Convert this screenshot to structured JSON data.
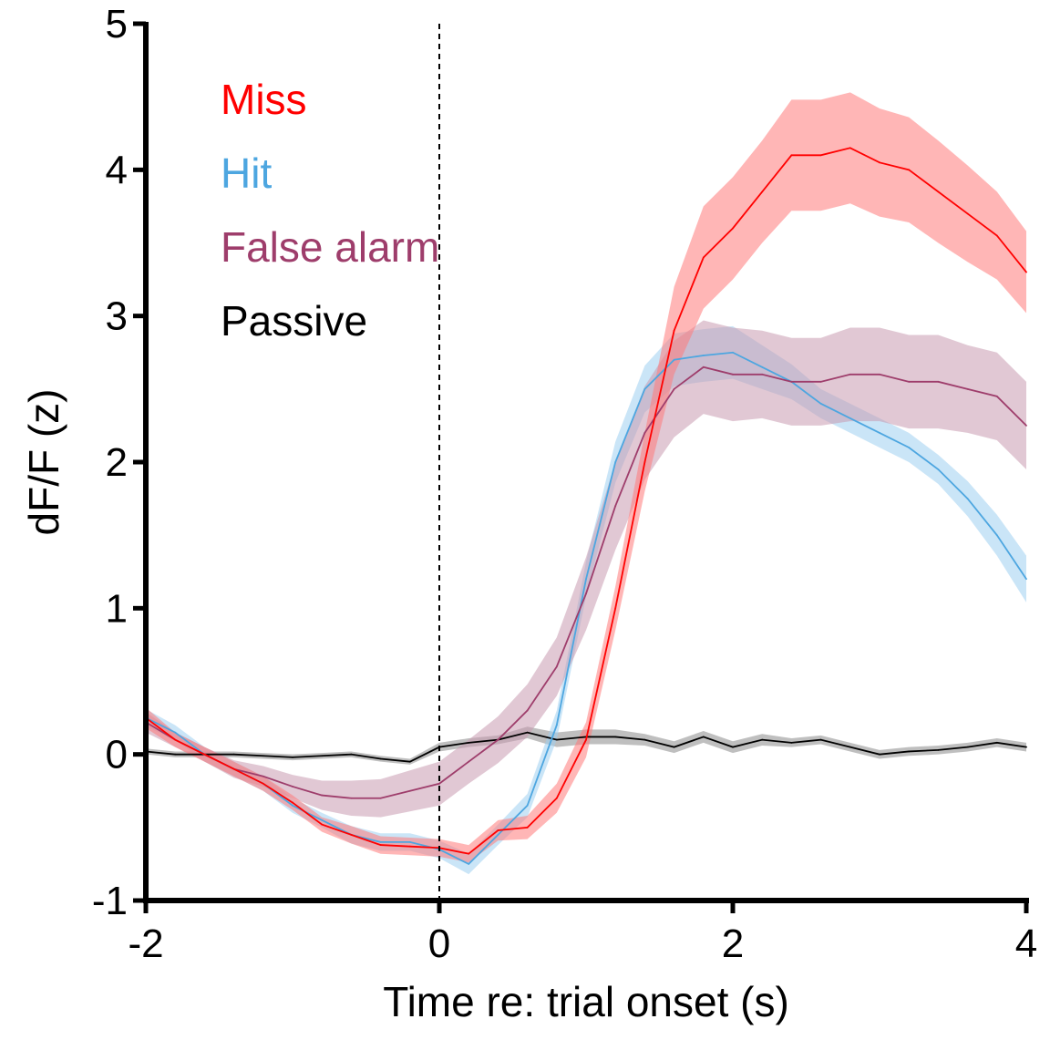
{
  "chart_data": {
    "type": "line",
    "title": "",
    "xlabel": "Time re: trial onset (s)",
    "ylabel": "dF/F (z)",
    "xlim": [
      -2,
      4
    ],
    "ylim": [
      -1,
      5
    ],
    "xticks": [
      -2,
      0,
      2,
      4
    ],
    "xtick_labels": [
      "-2",
      "0",
      "2",
      "4"
    ],
    "yticks": [
      -1,
      0,
      1,
      2,
      3,
      4,
      5
    ],
    "ytick_labels": [
      "-1",
      "0",
      "1",
      "2",
      "3",
      "4",
      "5"
    ],
    "grid": false,
    "legend_position": "top-left",
    "reference_line": {
      "x": 0,
      "style": "dashed"
    },
    "x": [
      -2.0,
      -1.8,
      -1.6,
      -1.4,
      -1.2,
      -1.0,
      -0.8,
      -0.6,
      -0.4,
      -0.2,
      0.0,
      0.2,
      0.4,
      0.6,
      0.8,
      1.0,
      1.2,
      1.4,
      1.6,
      1.8,
      2.0,
      2.2,
      2.4,
      2.6,
      2.8,
      3.0,
      3.2,
      3.4,
      3.6,
      3.8,
      4.0
    ],
    "series": [
      {
        "name": "Miss",
        "color": "#ff0000",
        "band_color": "#ff7a7a",
        "values": [
          0.25,
          0.1,
          0.0,
          -0.1,
          -0.2,
          -0.33,
          -0.48,
          -0.55,
          -0.62,
          -0.63,
          -0.64,
          -0.68,
          -0.52,
          -0.5,
          -0.3,
          0.1,
          1.0,
          2.0,
          2.9,
          3.4,
          3.6,
          3.85,
          4.1,
          4.1,
          4.15,
          4.05,
          4.0,
          3.85,
          3.7,
          3.55,
          3.3
        ],
        "sem": [
          0.07,
          0.05,
          0.05,
          0.05,
          0.05,
          0.05,
          0.05,
          0.06,
          0.06,
          0.06,
          0.06,
          0.06,
          0.07,
          0.08,
          0.1,
          0.12,
          0.15,
          0.2,
          0.3,
          0.35,
          0.35,
          0.35,
          0.38,
          0.38,
          0.38,
          0.37,
          0.36,
          0.35,
          0.33,
          0.3,
          0.28
        ]
      },
      {
        "name": "Hit",
        "color": "#4da6e0",
        "band_color": "#9fd0f0",
        "values": [
          0.25,
          0.15,
          0.0,
          -0.1,
          -0.2,
          -0.35,
          -0.45,
          -0.55,
          -0.6,
          -0.6,
          -0.65,
          -0.75,
          -0.55,
          -0.35,
          0.2,
          1.2,
          2.0,
          2.5,
          2.7,
          2.73,
          2.75,
          2.65,
          2.55,
          2.4,
          2.3,
          2.2,
          2.1,
          1.95,
          1.75,
          1.5,
          1.2
        ],
        "sem": [
          0.06,
          0.05,
          0.05,
          0.05,
          0.05,
          0.05,
          0.05,
          0.06,
          0.06,
          0.06,
          0.06,
          0.07,
          0.07,
          0.08,
          0.1,
          0.12,
          0.14,
          0.16,
          0.18,
          0.18,
          0.18,
          0.15,
          0.12,
          0.1,
          0.1,
          0.1,
          0.1,
          0.1,
          0.12,
          0.14,
          0.16
        ]
      },
      {
        "name": "False alarm",
        "color": "#9e3d6b",
        "band_color": "#c99ab0",
        "values": [
          0.22,
          0.1,
          0.0,
          -0.1,
          -0.15,
          -0.22,
          -0.28,
          -0.3,
          -0.3,
          -0.25,
          -0.2,
          -0.05,
          0.1,
          0.3,
          0.6,
          1.1,
          1.7,
          2.2,
          2.5,
          2.65,
          2.6,
          2.6,
          2.55,
          2.55,
          2.6,
          2.6,
          2.55,
          2.55,
          2.5,
          2.45,
          2.25
        ],
        "sem": [
          0.07,
          0.05,
          0.05,
          0.06,
          0.07,
          0.08,
          0.1,
          0.12,
          0.13,
          0.14,
          0.15,
          0.15,
          0.16,
          0.18,
          0.2,
          0.25,
          0.3,
          0.32,
          0.33,
          0.32,
          0.32,
          0.3,
          0.3,
          0.3,
          0.32,
          0.32,
          0.32,
          0.32,
          0.3,
          0.3,
          0.3
        ]
      },
      {
        "name": "Passive",
        "color": "#000000",
        "band_color": "#8a8a8a",
        "values": [
          0.02,
          0.0,
          0.0,
          0.0,
          -0.01,
          -0.02,
          -0.01,
          0.0,
          -0.03,
          -0.05,
          0.05,
          0.08,
          0.1,
          0.15,
          0.1,
          0.12,
          0.12,
          0.1,
          0.05,
          0.12,
          0.05,
          0.1,
          0.08,
          0.1,
          0.05,
          0.0,
          0.02,
          0.03,
          0.05,
          0.08,
          0.05
        ],
        "sem": [
          0.02,
          0.02,
          0.02,
          0.02,
          0.02,
          0.02,
          0.02,
          0.02,
          0.02,
          0.02,
          0.03,
          0.03,
          0.03,
          0.04,
          0.05,
          0.05,
          0.05,
          0.04,
          0.04,
          0.04,
          0.04,
          0.04,
          0.03,
          0.03,
          0.03,
          0.03,
          0.03,
          0.03,
          0.03,
          0.03,
          0.03
        ]
      }
    ]
  }
}
